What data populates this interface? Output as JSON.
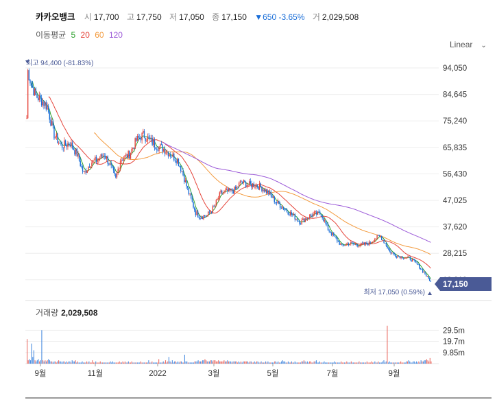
{
  "header": {
    "name": "카카오뱅크",
    "open_label": "시",
    "open": "17,700",
    "high_label": "고",
    "high": "17,750",
    "low_label": "저",
    "low": "17,050",
    "close_label": "종",
    "close": "17,150",
    "change": "▼650 -3.65%",
    "volume_label": "거",
    "volume": "2,029,508"
  },
  "ma_legend": {
    "label": "이동평균",
    "items": [
      {
        "text": "5",
        "color": "#2ca02c"
      },
      {
        "text": "20",
        "color": "#e5453b"
      },
      {
        "text": "60",
        "color": "#f39a3d"
      },
      {
        "text": "120",
        "color": "#9b59d8"
      }
    ]
  },
  "scale": {
    "label": "Linear",
    "icon": "chevron-down-icon"
  },
  "colors": {
    "up": "#e5453b",
    "down": "#1a6ed8",
    "current_badge": "#4a5a96",
    "annotation": "#4a5a96"
  },
  "chart_data": [
    {
      "type": "candlestick",
      "ylim": [
        17050,
        94050
      ],
      "yticks": [
        "94,050",
        "84,645",
        "75,240",
        "65,835",
        "56,430",
        "47,025",
        "37,620",
        "28,215",
        "18,810"
      ],
      "xticks": [
        "9월",
        "11월",
        "2022",
        "3월",
        "5월",
        "7월",
        "9월"
      ],
      "high_annotation": "최고 94,400 (-81.83%)",
      "low_annotation": "최저 17,050 (0.59%)",
      "current_price": "17,150",
      "price_path": [
        [
          0,
          76000
        ],
        [
          1,
          93000
        ],
        [
          4,
          88000
        ],
        [
          8,
          84000
        ],
        [
          14,
          82000
        ],
        [
          18,
          80000
        ],
        [
          24,
          70000
        ],
        [
          30,
          66000
        ],
        [
          38,
          67000
        ],
        [
          44,
          63000
        ],
        [
          50,
          56000
        ],
        [
          56,
          60000
        ],
        [
          62,
          61000
        ],
        [
          68,
          63000
        ],
        [
          72,
          60000
        ],
        [
          78,
          54000
        ],
        [
          82,
          61000
        ],
        [
          90,
          63000
        ],
        [
          96,
          68000
        ],
        [
          102,
          70000
        ],
        [
          108,
          68000
        ],
        [
          114,
          66000
        ],
        [
          120,
          65000
        ],
        [
          126,
          63000
        ],
        [
          132,
          61000
        ],
        [
          136,
          57000
        ],
        [
          142,
          49000
        ],
        [
          148,
          42000
        ],
        [
          152,
          40500
        ],
        [
          158,
          41000
        ],
        [
          164,
          44000
        ],
        [
          170,
          49000
        ],
        [
          176,
          49500
        ],
        [
          182,
          50000
        ],
        [
          188,
          53000
        ],
        [
          194,
          52000
        ],
        [
          200,
          52000
        ],
        [
          206,
          51000
        ],
        [
          212,
          49000
        ],
        [
          218,
          46000
        ],
        [
          224,
          44000
        ],
        [
          230,
          42000
        ],
        [
          236,
          40000
        ],
        [
          240,
          38500
        ],
        [
          246,
          40500
        ],
        [
          252,
          41500
        ],
        [
          258,
          41500
        ],
        [
          264,
          36000
        ],
        [
          270,
          33000
        ],
        [
          276,
          30000
        ],
        [
          282,
          31000
        ],
        [
          288,
          30500
        ],
        [
          294,
          30500
        ],
        [
          300,
          31000
        ],
        [
          306,
          33000
        ],
        [
          310,
          33500
        ],
        [
          314,
          31000
        ],
        [
          318,
          28000
        ],
        [
          324,
          26500
        ],
        [
          330,
          26000
        ],
        [
          336,
          25500
        ],
        [
          342,
          23500
        ],
        [
          348,
          20500
        ],
        [
          354,
          17150
        ]
      ],
      "ma": [
        {
          "period": 5,
          "color": "#2ca02c"
        },
        {
          "period": 20,
          "color": "#e5453b"
        },
        {
          "period": 60,
          "color": "#f39a3d"
        },
        {
          "period": 120,
          "color": "#9b59d8"
        }
      ]
    },
    {
      "type": "bar",
      "title_label": "거래량",
      "title_value": "2,029,508",
      "yticks": [
        "29.5m",
        "19.7m",
        "9.85m"
      ],
      "ylim": [
        0,
        39400000
      ],
      "values_m": [
        22,
        3,
        4,
        3,
        18,
        6,
        12,
        3,
        2,
        3,
        4,
        2,
        3,
        30,
        3,
        2,
        3,
        2,
        3,
        4,
        3,
        2,
        2,
        1,
        2,
        2,
        1,
        2,
        3,
        2,
        2,
        1,
        2,
        2,
        1,
        2,
        1,
        2,
        2,
        1,
        3,
        2,
        2,
        3,
        1,
        2,
        1,
        1,
        1,
        2,
        1,
        1,
        1,
        2,
        1,
        2,
        1,
        1,
        3,
        1,
        1,
        2,
        1,
        1,
        1,
        2,
        1,
        1,
        1,
        1,
        1,
        1,
        1,
        1,
        2,
        1,
        2,
        1,
        1,
        1,
        1,
        1,
        2,
        1,
        1,
        2,
        1,
        2,
        1,
        1,
        2,
        1,
        1,
        2,
        1,
        1,
        1,
        1,
        1,
        1,
        1,
        2,
        1,
        1,
        1,
        1,
        1,
        1,
        3,
        1,
        1,
        2,
        1,
        1,
        1,
        1,
        1,
        4,
        1,
        1,
        1,
        2,
        1,
        3,
        1,
        2,
        6,
        2,
        1,
        3,
        1,
        2,
        2,
        1,
        2,
        1,
        2,
        2,
        1,
        1,
        8,
        2,
        2,
        1,
        1,
        1,
        1,
        1,
        1,
        2,
        2,
        2,
        3,
        2,
        2,
        2,
        3,
        3,
        4,
        3,
        2,
        2,
        2,
        3,
        3,
        2,
        3,
        3,
        2,
        2,
        3,
        2,
        2,
        2,
        2,
        3,
        2,
        2,
        3,
        2,
        2,
        2,
        1,
        2,
        2,
        2,
        2,
        1,
        2,
        1,
        2,
        1,
        2,
        2,
        2,
        2,
        2,
        1,
        2,
        2,
        1,
        1,
        2,
        1,
        2,
        2,
        1,
        1,
        2,
        1,
        1,
        1,
        2,
        1,
        2,
        1,
        1,
        1,
        1,
        1,
        2,
        2,
        1,
        2,
        1,
        1,
        2,
        3,
        2,
        2,
        1,
        1,
        2,
        1,
        1,
        2,
        1,
        1,
        2,
        1,
        1,
        1,
        1,
        1,
        2,
        2,
        3,
        2,
        1,
        2,
        1,
        2,
        2,
        1,
        1,
        2,
        2,
        3,
        1,
        1,
        2,
        1,
        1,
        1,
        2,
        1,
        1,
        1,
        1,
        1,
        1,
        1,
        1,
        2,
        1,
        1,
        1,
        1,
        1,
        2,
        1,
        1,
        1,
        1,
        2,
        1,
        1,
        1,
        2,
        1,
        1,
        1,
        1,
        1,
        1,
        2,
        1,
        1,
        1,
        1,
        1,
        1,
        2,
        1,
        1,
        1,
        2,
        1,
        1,
        2,
        1,
        1,
        2,
        1,
        1,
        1,
        2,
        3,
        1,
        2,
        34,
        1,
        2,
        1,
        1,
        1,
        1,
        1,
        1,
        1,
        1,
        1,
        2,
        1,
        1,
        1,
        1,
        2,
        2,
        3,
        2,
        1,
        1,
        2,
        2,
        1,
        2,
        1,
        2,
        1,
        3,
        2,
        2,
        3,
        3,
        4,
        3,
        2,
        5,
        2
      ]
    }
  ]
}
